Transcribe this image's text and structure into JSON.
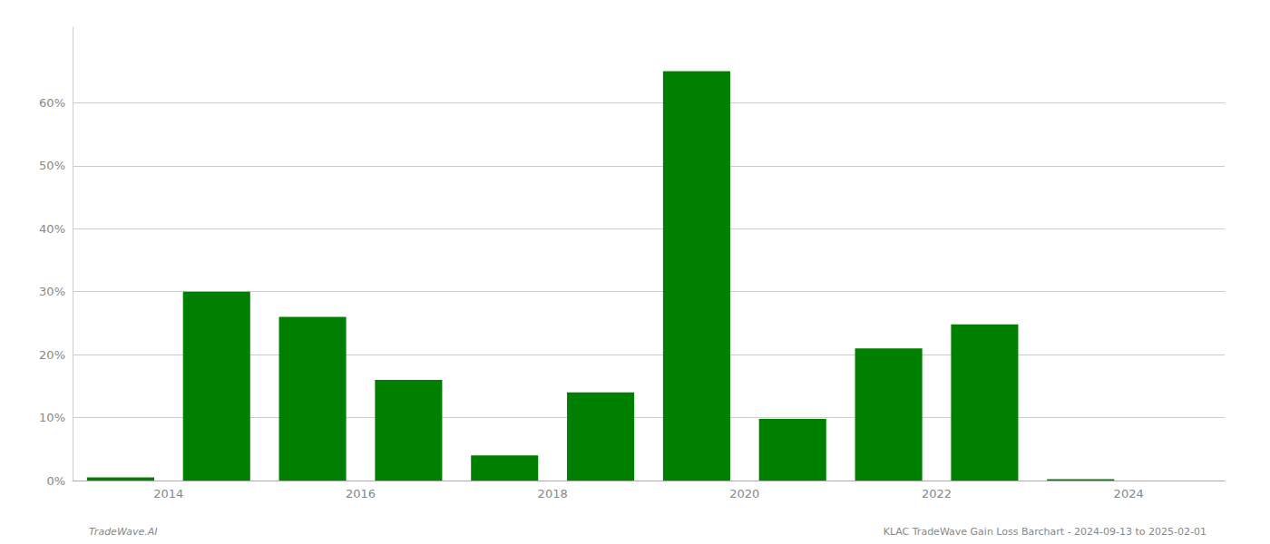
{
  "chart_data": {
    "type": "bar",
    "x": [
      2013.5,
      2014.5,
      2015.5,
      2016.5,
      2017.5,
      2018.5,
      2019.5,
      2020.5,
      2021.5,
      2022.5,
      2023.5
    ],
    "values": [
      0.005,
      0.3,
      0.26,
      0.16,
      0.04,
      0.14,
      0.65,
      0.098,
      0.21,
      0.248,
      0.002
    ],
    "color": "#008000",
    "xlim": [
      2013.0,
      2025.0
    ],
    "xticks": [
      2014,
      2016,
      2018,
      2020,
      2022,
      2024
    ],
    "ylim": [
      0,
      0.72
    ],
    "yticks": [
      {
        "value": 0.0,
        "label": "0%"
      },
      {
        "value": 0.1,
        "label": "10%"
      },
      {
        "value": 0.2,
        "label": "20%"
      },
      {
        "value": 0.3,
        "label": "30%"
      },
      {
        "value": 0.4,
        "label": "40%"
      },
      {
        "value": 0.5,
        "label": "50%"
      },
      {
        "value": 0.6,
        "label": "60%"
      }
    ],
    "grid": true,
    "annotations": [
      "TradeWave.AI",
      "KLAC TradeWave Gain Loss Barchart - 2024-09-13 to 2025-02-01"
    ]
  }
}
